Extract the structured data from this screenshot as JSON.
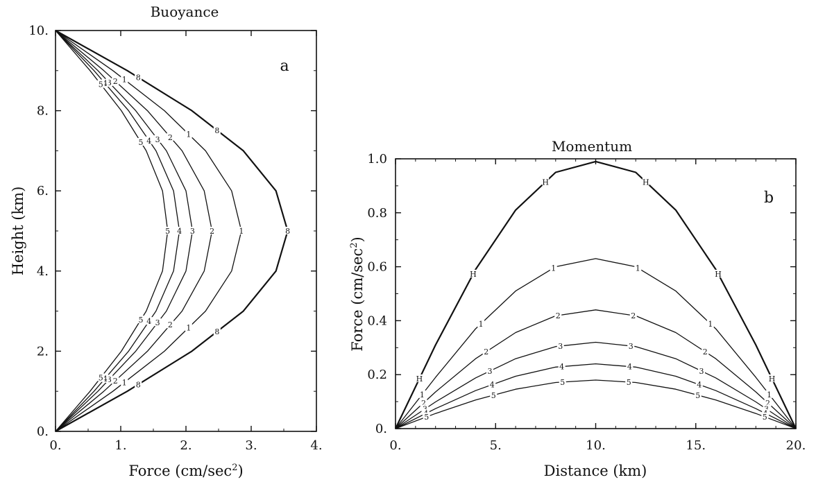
{
  "chart_data": [
    {
      "type": "line",
      "title": "Buoyance",
      "panel_label": "a",
      "xlabel": "Force (cm/sec",
      "xlabel_sup": "2",
      "xlabel_tail": ")",
      "ylabel": "Height (km)",
      "xlim": [
        0,
        4
      ],
      "ylim": [
        0,
        10
      ],
      "xticks": [
        "0.",
        "1.",
        "2.",
        "3.",
        "4."
      ],
      "yticks": [
        "0.",
        "2.",
        "4.",
        "6.",
        "8.",
        "10."
      ],
      "y": [
        0,
        1,
        2,
        3,
        4,
        5,
        6,
        7,
        8,
        9,
        10
      ],
      "series": [
        {
          "name": "8",
          "x": [
            0,
            1.1,
            2.09,
            2.88,
            3.38,
            3.56,
            3.38,
            2.88,
            2.09,
            1.1,
            0
          ]
        },
        {
          "name": "1",
          "x": [
            0,
            0.88,
            1.67,
            2.3,
            2.7,
            2.85,
            2.7,
            2.3,
            1.67,
            0.88,
            0
          ]
        },
        {
          "name": "2",
          "x": [
            0,
            0.74,
            1.41,
            1.94,
            2.28,
            2.4,
            2.28,
            1.94,
            1.41,
            0.74,
            0
          ]
        },
        {
          "name": "3",
          "x": [
            0,
            0.65,
            1.23,
            1.7,
            2.0,
            2.1,
            2.0,
            1.7,
            1.23,
            0.65,
            0
          ]
        },
        {
          "name": "4",
          "x": [
            0,
            0.59,
            1.12,
            1.54,
            1.81,
            1.9,
            1.81,
            1.54,
            1.12,
            0.59,
            0
          ]
        },
        {
          "name": "5",
          "x": [
            0,
            0.53,
            1.01,
            1.39,
            1.64,
            1.72,
            1.64,
            1.39,
            1.01,
            0.53,
            0
          ]
        }
      ]
    },
    {
      "type": "line",
      "title": "Momentum",
      "panel_label": "b",
      "xlabel": "Distance (km)",
      "ylabel": "Force (cm/sec",
      "ylabel_sup": "2",
      "ylabel_tail": ")",
      "xlim": [
        0,
        20
      ],
      "ylim": [
        0,
        1.0
      ],
      "xticks": [
        "0.",
        "5.",
        "10.",
        "15.",
        "20."
      ],
      "yticks": [
        "0.",
        "0.2",
        "0.4",
        "0.6",
        "0.8",
        "1.0"
      ],
      "x": [
        0,
        2,
        4,
        6,
        8,
        10,
        12,
        14,
        16,
        18,
        20
      ],
      "series": [
        {
          "name": "H",
          "values": [
            0,
            0.31,
            0.59,
            0.81,
            0.95,
            0.99,
            0.95,
            0.81,
            0.59,
            0.31,
            0
          ]
        },
        {
          "name": "1",
          "values": [
            0,
            0.19,
            0.37,
            0.51,
            0.6,
            0.63,
            0.6,
            0.51,
            0.37,
            0.19,
            0
          ]
        },
        {
          "name": "2",
          "values": [
            0,
            0.136,
            0.259,
            0.356,
            0.418,
            0.44,
            0.418,
            0.356,
            0.259,
            0.136,
            0
          ]
        },
        {
          "name": "3",
          "values": [
            0,
            0.099,
            0.188,
            0.259,
            0.304,
            0.32,
            0.304,
            0.259,
            0.188,
            0.099,
            0
          ]
        },
        {
          "name": "4",
          "values": [
            0,
            0.074,
            0.141,
            0.194,
            0.228,
            0.24,
            0.228,
            0.194,
            0.141,
            0.074,
            0
          ]
        },
        {
          "name": "5",
          "values": [
            0,
            0.056,
            0.106,
            0.146,
            0.171,
            0.18,
            0.171,
            0.146,
            0.106,
            0.056,
            0
          ]
        }
      ]
    }
  ]
}
